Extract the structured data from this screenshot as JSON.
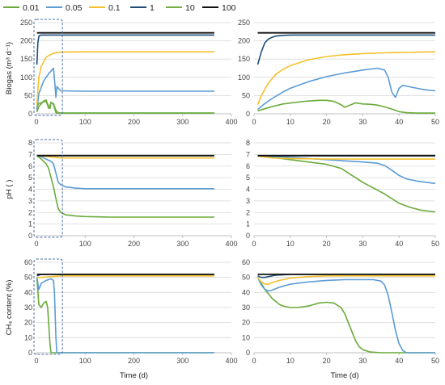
{
  "legend": {
    "entries": [
      {
        "label": "0.01",
        "color": "#6aaa3a"
      },
      {
        "label": "0.05",
        "color": "#5b9bd5"
      },
      {
        "label": "0.1",
        "color": "#f5c02b"
      },
      {
        "label": "1",
        "color": "#1f4e79"
      },
      {
        "label": "10",
        "color": "#70ad47"
      },
      {
        "label": "100",
        "color": "#111111"
      }
    ]
  },
  "chart_data": [
    {
      "type": "line",
      "panel": "biogas-full",
      "ylabel": "Biogas (m³ d⁻¹)",
      "xlabel": "",
      "xlim": [
        0,
        400
      ],
      "ylim": [
        0,
        250
      ],
      "xticks": [
        0,
        100,
        200,
        300,
        400
      ],
      "yticks": [
        0,
        50,
        100,
        150,
        200,
        250
      ],
      "grid": "horizontal",
      "highlight_box": {
        "x": [
          0,
          50
        ],
        "y": [
          0,
          250
        ]
      },
      "series": [
        {
          "key": "0.01",
          "x": [
            1,
            5,
            15,
            20,
            25,
            28,
            30,
            35,
            40,
            45,
            100,
            365
          ],
          "y": [
            5,
            20,
            35,
            38,
            20,
            15,
            32,
            25,
            3,
            2,
            2,
            2
          ]
        },
        {
          "key": "0.05",
          "x": [
            1,
            5,
            15,
            25,
            35,
            38,
            40,
            42,
            45,
            50,
            100,
            365
          ],
          "y": [
            10,
            55,
            90,
            110,
            125,
            80,
            45,
            75,
            70,
            63,
            62,
            62
          ]
        },
        {
          "key": "0.1",
          "x": [
            1,
            5,
            10,
            20,
            30,
            40,
            50,
            100,
            365
          ],
          "y": [
            25,
            100,
            130,
            155,
            163,
            168,
            169,
            170,
            170
          ]
        },
        {
          "key": "1",
          "x": [
            1,
            3,
            5,
            7,
            10,
            50,
            100,
            365
          ],
          "y": [
            135,
            195,
            212,
            215,
            216,
            216,
            216,
            216
          ]
        },
        {
          "key": "10",
          "x": [
            1,
            5,
            20,
            25,
            30,
            35,
            40,
            45,
            50,
            100,
            365
          ],
          "y": [
            20,
            28,
            35,
            15,
            30,
            28,
            10,
            3,
            2,
            2,
            2
          ]
        },
        {
          "key": "100",
          "x": [
            1,
            50,
            100,
            365
          ],
          "y": [
            222,
            222,
            222,
            222
          ]
        }
      ]
    },
    {
      "type": "line",
      "panel": "biogas-zoom",
      "ylabel": "",
      "xlabel": "",
      "xlim": [
        0,
        50
      ],
      "ylim": [
        0,
        250
      ],
      "xticks": [
        0,
        10,
        20,
        30,
        40,
        50
      ],
      "yticks": [
        0,
        50,
        100,
        150,
        200,
        250
      ],
      "grid": "horizontal",
      "series": [
        {
          "key": "0.01",
          "x": [
            1,
            3,
            5,
            8,
            12,
            15,
            18,
            20,
            22,
            24,
            25,
            26,
            28,
            30,
            32,
            34,
            36,
            38,
            40,
            42,
            45,
            50
          ],
          "y": [
            8,
            14,
            20,
            27,
            32,
            35,
            37,
            37,
            34,
            25,
            18,
            22,
            30,
            27,
            26,
            24,
            19,
            13,
            6,
            3,
            2,
            2
          ]
        },
        {
          "key": "0.05",
          "x": [
            1,
            3,
            5,
            8,
            10,
            15,
            20,
            25,
            30,
            34,
            36,
            37,
            38,
            39,
            40,
            41,
            43,
            45,
            47,
            50
          ],
          "y": [
            12,
            28,
            42,
            60,
            70,
            88,
            102,
            112,
            120,
            125,
            120,
            100,
            60,
            45,
            70,
            78,
            74,
            70,
            66,
            63
          ]
        },
        {
          "key": "0.1",
          "x": [
            1,
            2,
            4,
            6,
            8,
            10,
            15,
            20,
            25,
            30,
            35,
            40,
            45,
            50
          ],
          "y": [
            25,
            50,
            85,
            108,
            122,
            132,
            148,
            157,
            162,
            165,
            167,
            168,
            169,
            170
          ]
        },
        {
          "key": "1",
          "x": [
            1,
            2,
            3,
            4,
            5,
            6,
            8,
            10,
            20,
            30,
            40,
            50
          ],
          "y": [
            135,
            170,
            195,
            205,
            210,
            213,
            215,
            216,
            216,
            216,
            216,
            216
          ]
        },
        {
          "key": "100",
          "x": [
            1,
            10,
            20,
            30,
            40,
            50
          ],
          "y": [
            222,
            222,
            222,
            222,
            222,
            222
          ]
        }
      ]
    },
    {
      "type": "line",
      "panel": "ph-full",
      "ylabel": "pH ( )",
      "xlabel": "",
      "xlim": [
        0,
        400
      ],
      "ylim": [
        0,
        8
      ],
      "xticks": [
        0,
        100,
        200,
        300,
        400
      ],
      "yticks": [
        0,
        1,
        2,
        3,
        4,
        5,
        6,
        7,
        8
      ],
      "grid": "horizontal",
      "highlight_box": {
        "x": [
          0,
          50
        ],
        "y": [
          0,
          8
        ]
      },
      "series": [
        {
          "key": "0.01",
          "x": [
            1,
            10,
            20,
            25,
            30,
            35,
            40,
            45,
            50,
            60,
            80,
            100,
            150,
            200,
            365
          ],
          "y": [
            6.9,
            6.6,
            6.2,
            5.8,
            5.0,
            4.2,
            3.2,
            2.3,
            2.0,
            1.8,
            1.7,
            1.65,
            1.6,
            1.6,
            1.6
          ]
        },
        {
          "key": "0.05",
          "x": [
            1,
            10,
            20,
            30,
            35,
            40,
            45,
            50,
            60,
            80,
            100,
            200,
            365
          ],
          "y": [
            6.9,
            6.8,
            6.6,
            6.4,
            6.2,
            5.4,
            4.6,
            4.4,
            4.2,
            4.1,
            4.05,
            4.05,
            4.05
          ]
        },
        {
          "key": "0.1",
          "x": [
            1,
            50,
            100,
            365
          ],
          "y": [
            6.9,
            6.7,
            6.7,
            6.7
          ]
        },
        {
          "key": "1",
          "x": [
            1,
            50,
            100,
            365
          ],
          "y": [
            6.9,
            6.9,
            6.9,
            6.9
          ]
        },
        {
          "key": "100",
          "x": [
            1,
            50,
            100,
            365
          ],
          "y": [
            6.9,
            6.9,
            6.9,
            6.9
          ]
        }
      ]
    },
    {
      "type": "line",
      "panel": "ph-zoom",
      "ylabel": "",
      "xlabel": "",
      "xlim": [
        0,
        50
      ],
      "ylim": [
        0,
        8
      ],
      "xticks": [
        0,
        10,
        20,
        30,
        40,
        50
      ],
      "yticks": [
        0,
        1,
        2,
        3,
        4,
        5,
        6,
        7,
        8
      ],
      "grid": "horizontal",
      "series": [
        {
          "key": "0.01",
          "x": [
            1,
            5,
            10,
            15,
            20,
            24,
            27,
            30,
            33,
            36,
            38,
            40,
            43,
            46,
            50
          ],
          "y": [
            6.9,
            6.75,
            6.55,
            6.35,
            6.15,
            5.8,
            5.2,
            4.6,
            4.1,
            3.6,
            3.2,
            2.8,
            2.45,
            2.2,
            2.05
          ]
        },
        {
          "key": "0.05",
          "x": [
            1,
            5,
            10,
            15,
            20,
            25,
            30,
            34,
            36,
            38,
            40,
            42,
            45,
            50
          ],
          "y": [
            6.9,
            6.82,
            6.75,
            6.65,
            6.55,
            6.45,
            6.35,
            6.25,
            6.05,
            5.65,
            5.2,
            4.9,
            4.7,
            4.5
          ]
        },
        {
          "key": "0.1",
          "x": [
            1,
            5,
            10,
            20,
            30,
            40,
            50
          ],
          "y": [
            6.85,
            6.7,
            6.65,
            6.6,
            6.6,
            6.6,
            6.6
          ]
        },
        {
          "key": "1",
          "x": [
            1,
            10,
            20,
            30,
            40,
            50
          ],
          "y": [
            6.88,
            6.88,
            6.88,
            6.88,
            6.88,
            6.88
          ]
        },
        {
          "key": "100",
          "x": [
            1,
            10,
            20,
            30,
            40,
            50
          ],
          "y": [
            6.9,
            6.9,
            6.9,
            6.9,
            6.9,
            6.9
          ]
        }
      ]
    },
    {
      "type": "line",
      "panel": "ch4-full",
      "ylabel": "CH₄ content (%)",
      "xlabel": "Time (d)",
      "xlim": [
        0,
        400
      ],
      "ylim": [
        0,
        60
      ],
      "xticks": [
        0,
        100,
        200,
        300,
        400
      ],
      "yticks": [
        0,
        10,
        20,
        30,
        40,
        50,
        60
      ],
      "grid": "horizontal",
      "highlight_box": {
        "x": [
          0,
          50
        ],
        "y": [
          0,
          60
        ]
      },
      "series": [
        {
          "key": "0.01",
          "x": [
            1,
            5,
            10,
            15,
            20,
            23,
            25,
            28,
            30,
            35,
            100,
            365
          ],
          "y": [
            50,
            32,
            30,
            33,
            34,
            30,
            20,
            5,
            0,
            0,
            0,
            0
          ]
        },
        {
          "key": "0.05",
          "x": [
            1,
            5,
            10,
            20,
            30,
            35,
            37,
            40,
            42,
            45,
            100,
            365
          ],
          "y": [
            50,
            42,
            46,
            48,
            49,
            48,
            40,
            10,
            0,
            0,
            0,
            0
          ]
        },
        {
          "key": "0.1",
          "x": [
            1,
            10,
            50,
            365
          ],
          "y": [
            50,
            50,
            51,
            51
          ]
        },
        {
          "key": "1",
          "x": [
            1,
            10,
            50,
            365
          ],
          "y": [
            51,
            52,
            52,
            52
          ]
        },
        {
          "key": "100",
          "x": [
            1,
            50,
            365
          ],
          "y": [
            52,
            52,
            52
          ]
        }
      ]
    },
    {
      "type": "line",
      "panel": "ch4-zoom",
      "ylabel": "",
      "xlabel": "Time (d)",
      "xlim": [
        0,
        50
      ],
      "ylim": [
        0,
        60
      ],
      "xticks": [
        0,
        10,
        20,
        30,
        40,
        50
      ],
      "yticks": [
        0,
        10,
        20,
        30,
        40,
        50,
        60
      ],
      "grid": "horizontal",
      "series": [
        {
          "key": "0.01",
          "x": [
            1,
            2,
            3,
            4,
            5,
            6,
            7,
            8,
            10,
            12,
            15,
            18,
            20,
            22,
            24,
            25,
            26,
            27,
            28,
            29,
            30,
            32,
            35,
            40,
            50
          ],
          "y": [
            50,
            46,
            42,
            39,
            36,
            34,
            32,
            31,
            30,
            30,
            31,
            33,
            33.5,
            33,
            30,
            26,
            20,
            14,
            8,
            4,
            2,
            0.5,
            0,
            0,
            0
          ]
        },
        {
          "key": "0.05",
          "x": [
            1,
            2,
            3,
            4,
            5,
            7,
            10,
            15,
            20,
            25,
            30,
            33,
            35,
            36,
            37,
            38,
            39,
            40,
            41,
            42,
            45,
            50
          ],
          "y": [
            50,
            45,
            42,
            41,
            41.5,
            43.5,
            45.5,
            47,
            48,
            48.5,
            48.5,
            48.5,
            47.5,
            45,
            38,
            27,
            15,
            6,
            1.5,
            0,
            0,
            0
          ]
        },
        {
          "key": "0.1",
          "x": [
            1,
            2,
            3,
            4,
            5,
            7,
            10,
            15,
            20,
            30,
            40,
            50
          ],
          "y": [
            50,
            47,
            45.5,
            45.5,
            46.5,
            48,
            49.5,
            50.5,
            51,
            51,
            51,
            51
          ]
        },
        {
          "key": "1",
          "x": [
            1,
            2,
            3,
            4,
            6,
            10,
            20,
            30,
            40,
            50
          ],
          "y": [
            51,
            50,
            50,
            50.5,
            51.5,
            52,
            52,
            52,
            52,
            52
          ]
        },
        {
          "key": "100",
          "x": [
            1,
            10,
            20,
            30,
            40,
            50
          ],
          "y": [
            52,
            52,
            52,
            52,
            52,
            52
          ]
        }
      ]
    }
  ]
}
